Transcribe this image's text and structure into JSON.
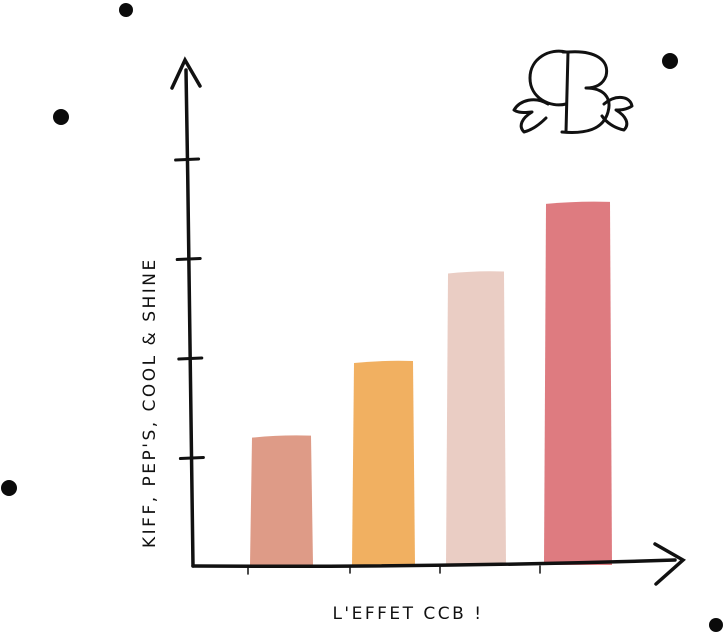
{
  "chart_data": {
    "type": "bar",
    "categories": [
      "",
      "",
      "",
      ""
    ],
    "values": [
      1.3,
      2.05,
      2.95,
      3.65
    ],
    "ylim": [
      0,
      4
    ],
    "xlabel": "L'EFFET CCB !",
    "ylabel": "KIFF, PEP'S, COOL & SHINE",
    "bar_colors": [
      "#de9b87",
      "#f1b061",
      "#eacdc4",
      "#de7b80"
    ],
    "grid": false,
    "legend": "none",
    "logo": "CB"
  }
}
